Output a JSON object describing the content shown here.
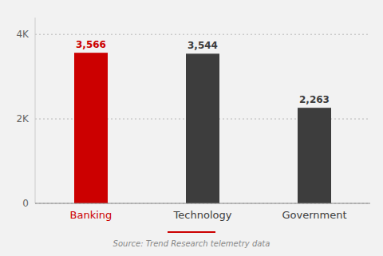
{
  "chart_data": {
    "type": "bar",
    "categories": [
      "Banking",
      "Technology",
      "Government"
    ],
    "values": [
      3566,
      3544,
      2263
    ],
    "value_labels": [
      "3,566",
      "3,544",
      "2,263"
    ],
    "data_labels": true,
    "colors": [
      "#cc0000",
      "#3d3d3d",
      "#3d3d3d"
    ],
    "ylim": [
      0,
      4400
    ],
    "yticks": [
      0,
      {
        "value": 2000,
        "label": "2K"
      },
      {
        "value": 4000,
        "label": "4K"
      }
    ],
    "grid": true,
    "annotations": [
      "Source: Trend Research telemetry data"
    ]
  }
}
